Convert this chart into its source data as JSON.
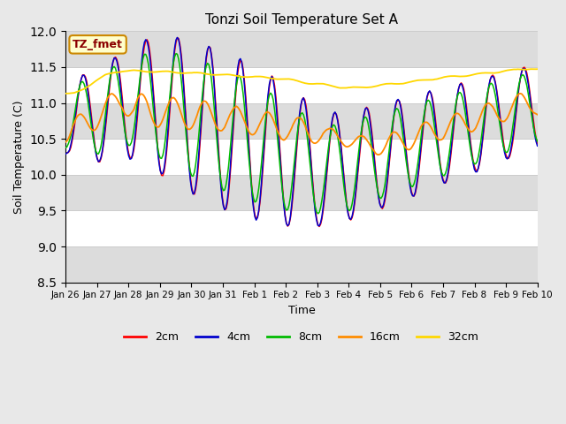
{
  "title": "Tonzi Soil Temperature Set A",
  "xlabel": "Time",
  "ylabel": "Soil Temperature (C)",
  "ylim": [
    8.5,
    12.0
  ],
  "annotation_text": "TZ_fmet",
  "annotation_color": "#8B0000",
  "annotation_bg": "#FFFFCC",
  "annotation_border": "#CC8800",
  "bg_color": "#E8E8E8",
  "plot_bg": "#FFFFFF",
  "colors": {
    "2cm": "#FF0000",
    "4cm": "#0000CC",
    "8cm": "#00BB00",
    "16cm": "#FF8C00",
    "32cm": "#FFD700"
  },
  "x_tick_labels": [
    "Jan 26",
    "Jan 27",
    "Jan 28",
    "Jan 29",
    "Jan 30",
    "Jan 31",
    "Feb 1",
    "Feb 2",
    "Feb 3",
    "Feb 4",
    "Feb 5",
    "Feb 6",
    "Feb 7",
    "Feb 8",
    "Feb 9",
    "Feb 10"
  ],
  "n_points": 360,
  "band_color": "#DCDCDC",
  "grid_color": "#CCCCCC"
}
